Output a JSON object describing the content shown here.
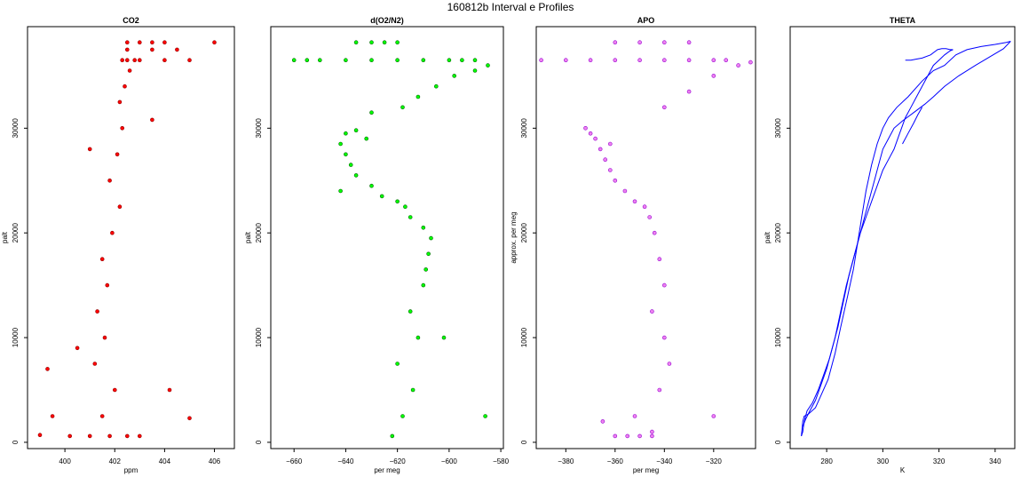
{
  "figure": {
    "title": "160812b   Interval e Profiles"
  },
  "chart_data": [
    {
      "type": "scatter",
      "title": "CO2",
      "xlabel": "ppm",
      "ylabel": "palt",
      "xlim": [
        398.5,
        406.8
      ],
      "ylim": [
        -600,
        39700
      ],
      "xticks": [
        400,
        402,
        404,
        406
      ],
      "yticks": [
        0,
        10000,
        20000,
        30000
      ],
      "marker": "open-circle",
      "colors": {
        "fill": "#ff0000",
        "edge": "#8b0000"
      },
      "series": [
        {
          "x": [
            400.2,
            401.0,
            401.8,
            402.5,
            403.0,
            401.5,
            402.0,
            401.2,
            401.6,
            401.3,
            401.7,
            401.5,
            401.9,
            402.2,
            401.8,
            402.1,
            402.3,
            402.2,
            402.4,
            402.6,
            402.8,
            402.5,
            402.3,
            403.0,
            404.0,
            405.0,
            402.5,
            403.5,
            404.5,
            402.5,
            403.0,
            403.5,
            404.0,
            400.5,
            399.5,
            405.0,
            406.0,
            399.0,
            399.3,
            401.0,
            403.5,
            404.2
          ],
          "y": [
            600,
            600,
            600,
            600,
            600,
            2500,
            5000,
            7500,
            10000,
            12500,
            15000,
            17500,
            20000,
            22500,
            25000,
            27500,
            30000,
            32500,
            34000,
            35500,
            36500,
            36500,
            36500,
            36500,
            36500,
            36500,
            37500,
            37500,
            37500,
            38200,
            38200,
            38200,
            38200,
            9000,
            2500,
            2300,
            38200,
            700,
            7000,
            28000,
            30800,
            5000
          ]
        }
      ]
    },
    {
      "type": "scatter",
      "title": "d(O2/N2)",
      "xlabel": "per meg",
      "ylabel": "palt",
      "xlim": [
        -669,
        -579
      ],
      "ylim": [
        -600,
        39700
      ],
      "xticks": [
        -660,
        -640,
        -620,
        -600,
        -580
      ],
      "yticks": [
        0,
        10000,
        20000,
        30000
      ],
      "marker": "open-circle",
      "colors": {
        "fill": "#00ff00",
        "edge": "#006400"
      },
      "series": [
        {
          "x": [
            -622,
            -618,
            -614,
            -620,
            -612,
            -615,
            -610,
            -609,
            -608,
            -607,
            -610,
            -615,
            -617,
            -620,
            -626,
            -630,
            -636,
            -638,
            -640,
            -642,
            -640,
            -636,
            -630,
            -618,
            -612,
            -605,
            -598,
            -590,
            -585,
            -660,
            -650,
            -640,
            -630,
            -620,
            -610,
            -600,
            -595,
            -590,
            -636,
            -630,
            -625,
            -620,
            -642,
            -586,
            -602,
            -655,
            -632
          ],
          "y": [
            600,
            2500,
            5000,
            7500,
            10000,
            12500,
            15000,
            16500,
            18000,
            19500,
            20500,
            21500,
            22500,
            23000,
            23500,
            24500,
            25500,
            26500,
            27500,
            28500,
            29500,
            29800,
            31500,
            32000,
            33000,
            34000,
            35000,
            35500,
            36000,
            36500,
            36500,
            36500,
            36500,
            36500,
            36500,
            36500,
            36500,
            36500,
            38200,
            38200,
            38200,
            38200,
            24000,
            2500,
            10000,
            36500,
            29000
          ]
        }
      ]
    },
    {
      "type": "scatter",
      "title": "APO",
      "xlabel": "per meg",
      "ylabel": "approx. per meg",
      "xlim": [
        -392,
        -303
      ],
      "ylim": [
        -600,
        39700
      ],
      "xticks": [
        -380,
        -360,
        -340,
        -320
      ],
      "yticks": [
        0,
        10000,
        20000,
        30000
      ],
      "marker": "open-circle",
      "colors": {
        "fill": "#ee82ee",
        "edge": "#9400d3"
      },
      "series": [
        {
          "x": [
            -360,
            -355,
            -350,
            -345,
            -352,
            -342,
            -338,
            -340,
            -345,
            -340,
            -342,
            -344,
            -346,
            -348,
            -352,
            -356,
            -360,
            -362,
            -364,
            -366,
            -368,
            -370,
            -372,
            -362,
            -340,
            -330,
            -320,
            -310,
            -305,
            -380,
            -370,
            -360,
            -350,
            -340,
            -330,
            -320,
            -315,
            -360,
            -350,
            -340,
            -330,
            -365,
            -320,
            -390,
            -345
          ],
          "y": [
            600,
            600,
            600,
            600,
            2500,
            5000,
            7500,
            10000,
            12500,
            15000,
            17500,
            20000,
            21500,
            22500,
            23000,
            24000,
            25000,
            26000,
            27000,
            28000,
            29000,
            29500,
            30000,
            28500,
            32000,
            33500,
            35000,
            36000,
            36300,
            36500,
            36500,
            36500,
            36500,
            36500,
            36500,
            36500,
            36500,
            38200,
            38200,
            38200,
            38200,
            2000,
            2500,
            36500,
            1000
          ]
        }
      ]
    },
    {
      "type": "line",
      "title": "THETA",
      "xlabel": "K",
      "ylabel": "palt",
      "xlim": [
        267,
        347
      ],
      "ylim": [
        -600,
        39700
      ],
      "xticks": [
        280,
        300,
        320,
        340
      ],
      "yticks": [
        0,
        10000,
        20000,
        30000
      ],
      "colors": {
        "line": "#0000ff"
      },
      "series": [
        {
          "x": [
            271.0,
            271.5,
            272.0,
            273.5,
            276.0,
            278.0,
            280.5,
            283.0,
            285.0,
            287.5,
            289.5,
            291.0,
            292.5,
            294.0,
            296.0,
            298.0,
            300.0,
            302.0,
            305.0,
            309.0,
            314.0,
            318.0,
            322.0,
            326.0,
            330.0,
            335.0,
            340.0,
            344.0,
            345.5
          ],
          "y": [
            600,
            2000,
            2500,
            2700,
            3300,
            4500,
            6000,
            8500,
            11000,
            14000,
            16500,
            19000,
            21500,
            24000,
            26500,
            28500,
            30000,
            31000,
            32000,
            33000,
            34500,
            35500,
            36000,
            37000,
            37500,
            37800,
            38000,
            38200,
            38300
          ]
        },
        {
          "x": [
            345.5,
            343.0,
            338.0,
            333.0,
            327.0,
            322.0,
            318.0,
            315.0,
            311.0,
            307.0,
            304.0,
            302.0,
            300.0,
            298.5,
            297.0,
            295.0,
            293.0,
            291.0,
            289.0,
            287.0,
            285.0,
            283.0,
            281.0,
            279.0,
            277.0,
            275.0,
            273.0,
            272.0,
            271.5,
            271.0
          ],
          "y": [
            38300,
            37600,
            36800,
            36000,
            35000,
            34000,
            33000,
            32300,
            31500,
            30700,
            30000,
            29000,
            28000,
            26500,
            25000,
            23000,
            21000,
            19000,
            17000,
            15000,
            12500,
            10000,
            8000,
            6500,
            5000,
            3800,
            3000,
            2000,
            1000,
            600
          ]
        },
        {
          "x": [
            308.0,
            310.0,
            312.0,
            314.0,
            317.0,
            319.5,
            321.0,
            322.5,
            324.0,
            325.0,
            324.0,
            322.0,
            320.0,
            318.0,
            316.0,
            314.0,
            312.0,
            310.0,
            308.0,
            306.0,
            304.0,
            302.0,
            300.0,
            298.0,
            296.0,
            294.0,
            292.0,
            290.0,
            288.0,
            286.0,
            284.0,
            282.0,
            280.0,
            278.0,
            276.0,
            274.0,
            272.5,
            271.5
          ],
          "y": [
            36500,
            36500,
            36600,
            36700,
            37000,
            37500,
            37600,
            37600,
            37500,
            37500,
            37400,
            37000,
            36500,
            36000,
            35000,
            34000,
            33000,
            32000,
            31000,
            29500,
            28000,
            27000,
            26000,
            24500,
            23000,
            21500,
            20000,
            18000,
            16000,
            13500,
            11000,
            9000,
            7000,
            5500,
            4000,
            3000,
            2200,
            1500
          ]
        },
        {
          "x": [
            307.0,
            309.0,
            311.0,
            312.5,
            314.0
          ],
          "y": [
            28500,
            29500,
            30500,
            31300,
            32000
          ]
        }
      ]
    }
  ]
}
